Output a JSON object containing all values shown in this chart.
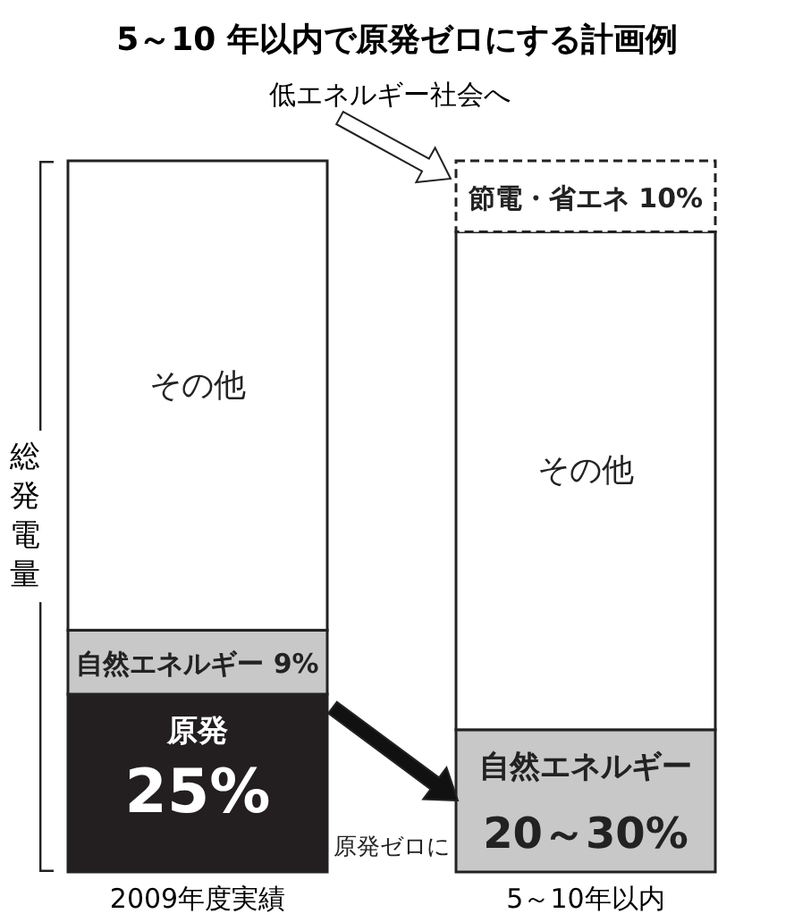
{
  "chart_data": {
    "type": "bar",
    "stacked": true,
    "title": "5～10 年以内で原発ゼロにする計画例",
    "ylabel": "総発電量",
    "categories": [
      "2009年度実績",
      "5～10年以内"
    ],
    "ylim": [
      0,
      100
    ],
    "tick_labels": "x",
    "series": [
      {
        "name": "原発",
        "color": "#231f20",
        "values": [
          25,
          null
        ],
        "value_labels": [
          "25%",
          null
        ]
      },
      {
        "name": "自然エネルギー",
        "color": "#c8c8c8",
        "values": [
          9,
          20
        ],
        "value_labels": [
          "9%",
          "20～30%"
        ]
      },
      {
        "name": "その他",
        "color": "#ffffff",
        "values": [
          66,
          70
        ]
      },
      {
        "name": "節電・省エネ",
        "color": "#ffffff",
        "line_style": "dashed",
        "values": [
          null,
          10
        ],
        "value_labels": [
          null,
          "10%"
        ]
      }
    ],
    "annotations": [
      "低エネルギー社会へ",
      "原発ゼロに"
    ]
  }
}
